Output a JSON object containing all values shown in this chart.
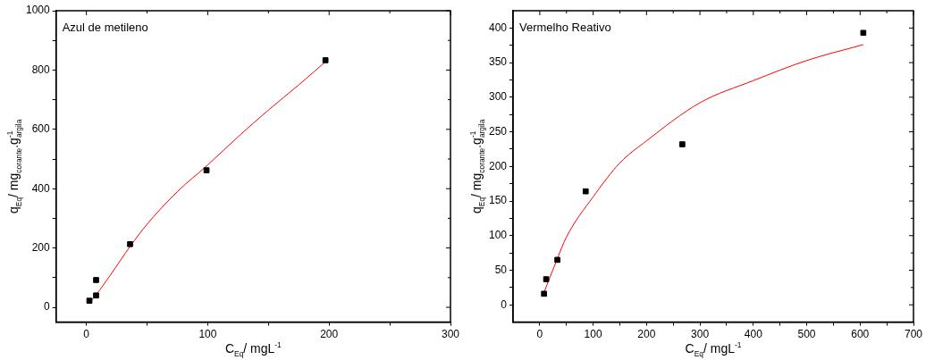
{
  "chart_data": [
    {
      "type": "scatter",
      "title": "Azul de metileno",
      "xlabel": "C$_{Eq}$/ mgL$^{-1}$",
      "ylabel": "q$_{Eq}$/ mg$_{corante}$.g$^{-1}$$_{argila}$",
      "xlim": [
        -25,
        300
      ],
      "ylim": [
        -50,
        1000
      ],
      "xticks": [
        0,
        {
          "value": 50,
          "label": null
        },
        100,
        {
          "value": 150,
          "label": null
        },
        200,
        {
          "value": 250,
          "label": null
        },
        300
      ],
      "yticks": [
        0,
        {
          "value": 100,
          "label": null
        },
        200,
        {
          "value": 300,
          "label": null
        },
        400,
        {
          "value": 500,
          "label": null
        },
        600,
        {
          "value": 700,
          "label": null
        },
        800,
        {
          "value": 900,
          "label": null
        },
        1000
      ],
      "grid": false,
      "legend": false,
      "series": [
        {
          "type": "scatter",
          "color": "#000000",
          "marker": "square",
          "x": [
            2.5,
            8,
            8,
            36,
            99,
            197
          ],
          "values": [
            22,
            92,
            40,
            213,
            462,
            833
          ]
        },
        {
          "type": "line",
          "color": "#ff0000",
          "marker": "none",
          "x": [
            3,
            8,
            20,
            36,
            50,
            75,
            100,
            125,
            150,
            175,
            197
          ],
          "values": [
            18,
            42,
            110,
            205,
            280,
            390,
            480,
            575,
            665,
            750,
            828
          ]
        }
      ]
    },
    {
      "type": "scatter",
      "title": "Vermelho Reativo",
      "xlabel": "C$_{Eq}$/ mgL$^{-1}$",
      "ylabel": "q$_{Eq}$/ mg$_{corante}$.g$^{-1}$$_{argila}$",
      "xlim": [
        -50,
        700
      ],
      "ylim": [
        -25,
        425
      ],
      "xticks": [
        0,
        {
          "value": 50,
          "label": null
        },
        100,
        {
          "value": 150,
          "label": null
        },
        200,
        {
          "value": 250,
          "label": null
        },
        300,
        {
          "value": 350,
          "label": null
        },
        400,
        {
          "value": 450,
          "label": null
        },
        500,
        {
          "value": 550,
          "label": null
        },
        600,
        {
          "value": 650,
          "label": null
        },
        700
      ],
      "yticks": [
        0,
        {
          "value": 25,
          "label": null
        },
        50,
        {
          "value": 75,
          "label": null
        },
        100,
        {
          "value": 125,
          "label": null
        },
        150,
        {
          "value": 175,
          "label": null
        },
        200,
        {
          "value": 225,
          "label": null
        },
        250,
        {
          "value": 275,
          "label": null
        },
        300,
        {
          "value": 325,
          "label": null
        },
        350,
        {
          "value": 375,
          "label": null
        },
        400
      ],
      "grid": false,
      "legend": false,
      "series": [
        {
          "type": "scatter",
          "color": "#000000",
          "marker": "square",
          "x": [
            8,
            12,
            33,
            86,
            267,
            606
          ],
          "values": [
            16,
            37,
            65,
            164,
            232,
            393
          ]
        },
        {
          "type": "line",
          "color": "#ff0000",
          "marker": "none",
          "x": [
            8,
            30,
            50,
            100,
            150,
            200,
            300,
            400,
            500,
            606
          ],
          "values": [
            18,
            61,
            98,
            156,
            205,
            237,
            292,
            324,
            353,
            376
          ]
        }
      ]
    }
  ]
}
